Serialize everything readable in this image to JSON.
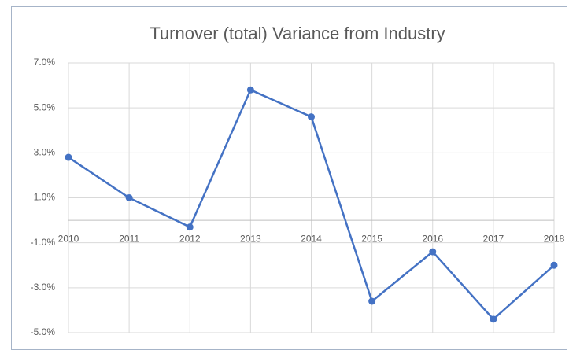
{
  "chart_data": {
    "type": "line",
    "title": "Turnover (total) Variance from Industry",
    "categories": [
      "2010",
      "2011",
      "2012",
      "2013",
      "2014",
      "2015",
      "2016",
      "2017",
      "2018"
    ],
    "series": [
      {
        "name": "Turnover (total) Variance",
        "color": "#4472c4",
        "values": [
          2.8,
          1.0,
          -0.3,
          5.8,
          4.6,
          -3.6,
          -1.4,
          -4.4,
          -2.0
        ]
      }
    ],
    "ylim": [
      -5,
      7
    ],
    "yticks": [
      {
        "value": 7,
        "label": "7.0%"
      },
      {
        "value": 5,
        "label": "5.0%"
      },
      {
        "value": 3,
        "label": "3.0%"
      },
      {
        "value": 1,
        "label": "1.0%"
      },
      {
        "value": -1,
        "label": "-1.0%"
      },
      {
        "value": -3,
        "label": "-3.0%"
      },
      {
        "value": -5,
        "label": "-5.0%"
      }
    ],
    "grid": true
  }
}
